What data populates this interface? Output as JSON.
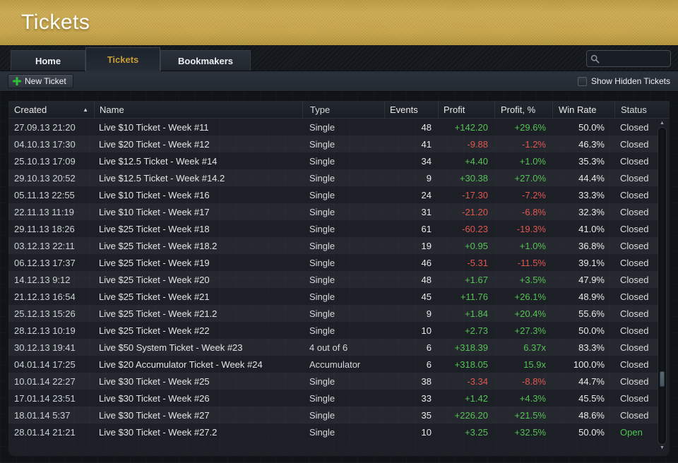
{
  "window": {
    "title": "Tickets"
  },
  "tabs": [
    {
      "label": "Home",
      "active": false
    },
    {
      "label": "Tickets",
      "active": true
    },
    {
      "label": "Bookmakers",
      "active": false
    }
  ],
  "search": {
    "value": "",
    "placeholder": ""
  },
  "toolbar": {
    "new_ticket_label": "New Ticket",
    "show_hidden_label": "Show Hidden Tickets",
    "show_hidden_checked": false
  },
  "table": {
    "columns": [
      "Created",
      "Name",
      "Type",
      "Events",
      "Profit",
      "Profit, %",
      "Win Rate",
      "Status"
    ],
    "sort_column": "Created",
    "sort_direction": "asc",
    "rows": [
      {
        "created": "27.09.13 21:20",
        "name": "Live $10 Ticket - Week #11",
        "type": "Single",
        "events": "48",
        "profit": "+142.20",
        "profit_pct": "+29.6%",
        "win_rate": "50.0%",
        "status": "Closed"
      },
      {
        "created": "04.10.13 17:30",
        "name": "Live $20 Ticket - Week #12",
        "type": "Single",
        "events": "41",
        "profit": "-9.88",
        "profit_pct": "-1.2%",
        "win_rate": "46.3%",
        "status": "Closed"
      },
      {
        "created": "25.10.13 17:09",
        "name": "Live $12.5 Ticket - Week #14",
        "type": "Single",
        "events": "34",
        "profit": "+4.40",
        "profit_pct": "+1.0%",
        "win_rate": "35.3%",
        "status": "Closed"
      },
      {
        "created": "29.10.13 20:52",
        "name": "Live $12.5 Ticket - Week #14.2",
        "type": "Single",
        "events": "9",
        "profit": "+30.38",
        "profit_pct": "+27.0%",
        "win_rate": "44.4%",
        "status": "Closed"
      },
      {
        "created": "05.11.13 22:55",
        "name": "Live $10 Ticket - Week #16",
        "type": "Single",
        "events": "24",
        "profit": "-17.30",
        "profit_pct": "-7.2%",
        "win_rate": "33.3%",
        "status": "Closed"
      },
      {
        "created": "22.11.13 11:19",
        "name": "Live $10 Ticket - Week #17",
        "type": "Single",
        "events": "31",
        "profit": "-21.20",
        "profit_pct": "-6.8%",
        "win_rate": "32.3%",
        "status": "Closed"
      },
      {
        "created": "29.11.13 18:26",
        "name": "Live $25 Ticket - Week #18",
        "type": "Single",
        "events": "61",
        "profit": "-60.23",
        "profit_pct": "-19.3%",
        "win_rate": "41.0%",
        "status": "Closed"
      },
      {
        "created": "03.12.13 22:11",
        "name": "Live $25 Ticket - Week #18.2",
        "type": "Single",
        "events": "19",
        "profit": "+0.95",
        "profit_pct": "+1.0%",
        "win_rate": "36.8%",
        "status": "Closed"
      },
      {
        "created": "06.12.13 17:37",
        "name": "Live $25 Ticket - Week #19",
        "type": "Single",
        "events": "46",
        "profit": "-5.31",
        "profit_pct": "-11.5%",
        "win_rate": "39.1%",
        "status": "Closed"
      },
      {
        "created": "14.12.13 9:12",
        "name": "Live $25 Ticket - Week #20",
        "type": "Single",
        "events": "48",
        "profit": "+1.67",
        "profit_pct": "+3.5%",
        "win_rate": "47.9%",
        "status": "Closed"
      },
      {
        "created": "21.12.13 16:54",
        "name": "Live $25 Ticket - Week #21",
        "type": "Single",
        "events": "45",
        "profit": "+11.76",
        "profit_pct": "+26.1%",
        "win_rate": "48.9%",
        "status": "Closed"
      },
      {
        "created": "25.12.13 15:26",
        "name": "Live $25 Ticket - Week #21.2",
        "type": "Single",
        "events": "9",
        "profit": "+1.84",
        "profit_pct": "+20.4%",
        "win_rate": "55.6%",
        "status": "Closed"
      },
      {
        "created": "28.12.13 10:19",
        "name": "Live $25 Ticket - Week #22",
        "type": "Single",
        "events": "10",
        "profit": "+2.73",
        "profit_pct": "+27.3%",
        "win_rate": "50.0%",
        "status": "Closed"
      },
      {
        "created": "30.12.13 19:41",
        "name": "Live $50 System Ticket - Week #23",
        "type": "4 out of 6",
        "events": "6",
        "profit": "+318.39",
        "profit_pct": "6.37x",
        "win_rate": "83.3%",
        "status": "Closed"
      },
      {
        "created": "04.01.14 17:25",
        "name": "Live $20 Accumulator Ticket - Week #24",
        "type": "Accumulator",
        "events": "6",
        "profit": "+318.05",
        "profit_pct": "15.9x",
        "win_rate": "100.0%",
        "status": "Closed"
      },
      {
        "created": "10.01.14 22:27",
        "name": "Live $30 Ticket - Week #25",
        "type": "Single",
        "events": "38",
        "profit": "-3.34",
        "profit_pct": "-8.8%",
        "win_rate": "44.7%",
        "status": "Closed"
      },
      {
        "created": "17.01.14 23:51",
        "name": "Live $30 Ticket - Week #26",
        "type": "Single",
        "events": "33",
        "profit": "+1.42",
        "profit_pct": "+4.3%",
        "win_rate": "45.5%",
        "status": "Closed"
      },
      {
        "created": "18.01.14 5:37",
        "name": "Live $30 Ticket - Week #27",
        "type": "Single",
        "events": "35",
        "profit": "+226.20",
        "profit_pct": "+21.5%",
        "win_rate": "48.6%",
        "status": "Closed"
      },
      {
        "created": "28.01.14 21:21",
        "name": "Live $30 Ticket - Week #27.2",
        "type": "Single",
        "events": "10",
        "profit": "+3.25",
        "profit_pct": "+32.5%",
        "win_rate": "50.0%",
        "status": "Open"
      }
    ]
  },
  "colors": {
    "accent_gold": "#c7a54b",
    "tab_active_text": "#c89d37",
    "positive": "#57c157",
    "negative": "#e0574f",
    "status_open": "#4cc553"
  },
  "icons": {
    "sort_asc": "▲",
    "scroll_up": "▲",
    "scroll_down": "▼"
  }
}
